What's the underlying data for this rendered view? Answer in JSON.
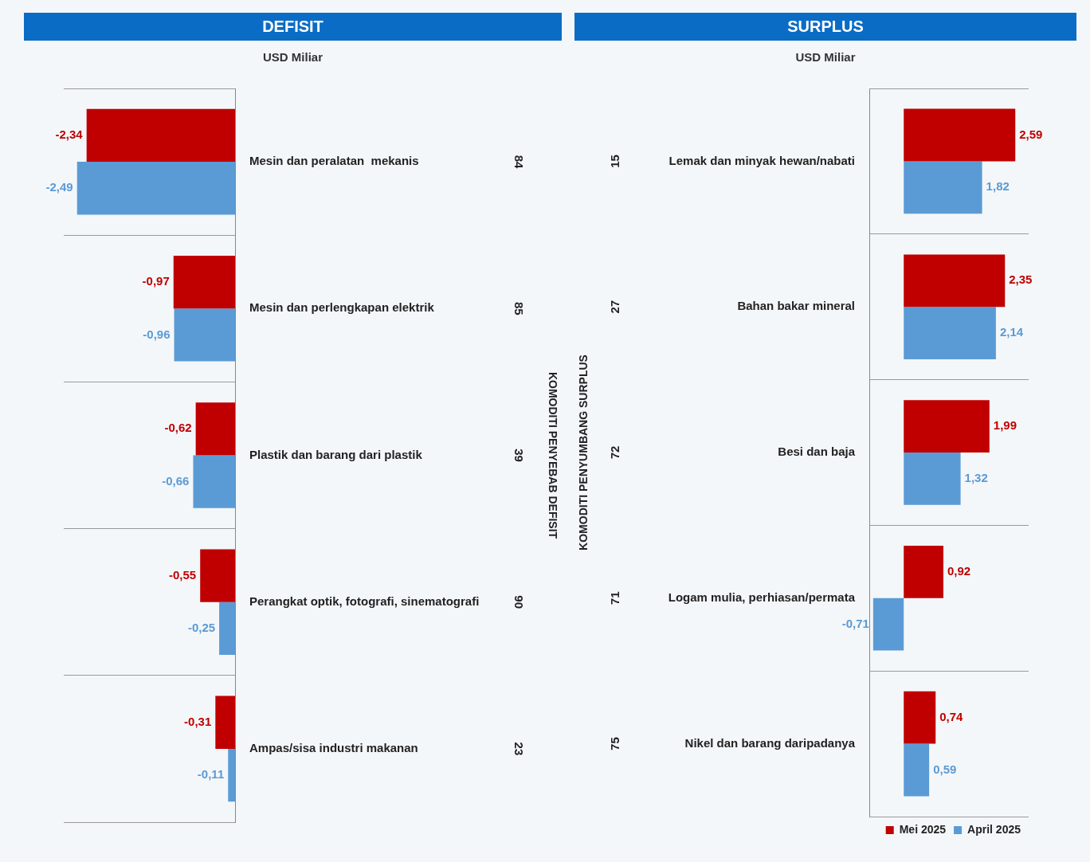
{
  "chart_data": [
    {
      "type": "bar",
      "orientation": "horizontal",
      "title": "DEFISIT",
      "subtitle": "USD Miliar",
      "ylabel": "KOMODITI PENYEBAB DEFISIT",
      "categories": [
        "Mesin dan peralatan  mekanis",
        "Mesin dan perlengkapan elektrik",
        "Plastik dan barang dari plastik",
        "Perangkat optik, fotografi, sinematografi",
        "Ampas/sisa industri makanan"
      ],
      "series": [
        {
          "color": "#c00000",
          "values": [
            -2.34,
            -0.97,
            -0.62,
            -0.55,
            -0.31
          ],
          "value_labels": [
            "-2,34",
            "-0,97",
            "-0,62",
            "-0,55",
            "-0,31"
          ]
        },
        {
          "color": "#5b9bd5",
          "values": [
            -2.49,
            -0.96,
            -0.66,
            -0.25,
            -0.11
          ],
          "value_labels": [
            "-2,49",
            "-0,96",
            "-0,66",
            "-0,25",
            "-0,11"
          ]
        }
      ],
      "xlim": [
        -2.7,
        0
      ],
      "tick_labels": "y",
      "grid": "y",
      "legend": false,
      "annotations": [
        "84",
        "85",
        "39",
        "90",
        "23"
      ]
    },
    {
      "type": "bar",
      "orientation": "horizontal",
      "title": "SURPLUS",
      "subtitle": "USD Miliar",
      "ylabel": "KOMODITI PENYUMBANG SURPLUS",
      "categories": [
        "Lemak dan minyak hewan/nabati",
        "Bahan bakar mineral",
        "Besi dan baja",
        "Logam mulia, perhiasan/permata",
        "Nikel dan barang daripadanya"
      ],
      "series": [
        {
          "name": "Mei 2025",
          "color": "#c00000",
          "values": [
            2.59,
            2.35,
            1.99,
            0.92,
            0.74
          ],
          "value_labels": [
            "2,59",
            "2,35",
            "1,99",
            "0,92",
            "0,74"
          ]
        },
        {
          "name": "April 2025",
          "color": "#5b9bd5",
          "values": [
            1.82,
            2.14,
            1.32,
            -0.71,
            0.59
          ],
          "value_labels": [
            "1,82",
            "2,14",
            "1,32",
            "-0,71",
            "0,59"
          ]
        }
      ],
      "xlim": [
        -0.8,
        2.9
      ],
      "tick_labels": "y",
      "grid": "y",
      "legend": "bottom right",
      "annotations": [
        "15",
        "27",
        "72",
        "71",
        "75"
      ]
    }
  ]
}
